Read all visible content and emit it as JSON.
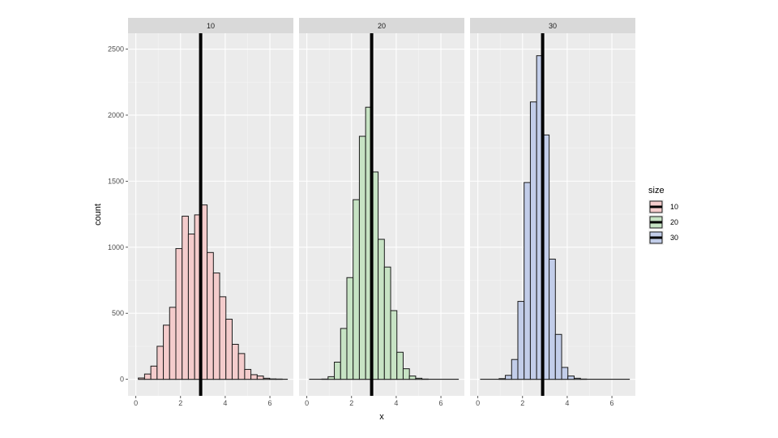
{
  "chart_data": {
    "type": "bar",
    "xlabel": "x",
    "ylabel": "count",
    "xlim": [
      -0.35,
      7.05
    ],
    "ylim": [
      -125,
      2620
    ],
    "x_ticks": [
      0,
      2,
      4,
      6
    ],
    "y_ticks": [
      0,
      500,
      1000,
      1500,
      2000,
      2500
    ],
    "bin_width": 0.28,
    "vline_x": 2.9,
    "legend": {
      "title": "size",
      "placement": "right"
    },
    "panels": [
      {
        "label": "10",
        "series_name": "10",
        "fill": "#f4cccc",
        "bin_centers": [
          0.25,
          0.53,
          0.81,
          1.09,
          1.37,
          1.65,
          1.93,
          2.21,
          2.49,
          2.77,
          3.05,
          3.33,
          3.61,
          3.89,
          4.17,
          4.45,
          4.73,
          5.01,
          5.29,
          5.57,
          5.85,
          6.13,
          6.41
        ],
        "counts": [
          10,
          40,
          100,
          250,
          410,
          545,
          990,
          1235,
          1100,
          1245,
          1320,
          960,
          805,
          625,
          455,
          265,
          195,
          75,
          35,
          25,
          8,
          3,
          2
        ]
      },
      {
        "label": "20",
        "series_name": "20",
        "fill": "#c7e3c4",
        "bin_centers": [
          0.81,
          1.09,
          1.37,
          1.65,
          1.93,
          2.21,
          2.49,
          2.77,
          3.05,
          3.33,
          3.61,
          3.89,
          4.17,
          4.45,
          4.73,
          5.01,
          5.29
        ],
        "counts": [
          2,
          20,
          130,
          385,
          770,
          1360,
          1840,
          2060,
          1570,
          1060,
          850,
          520,
          205,
          80,
          25,
          8,
          2
        ]
      },
      {
        "label": "30",
        "series_name": "30",
        "fill": "#c2cde9",
        "bin_centers": [
          1.09,
          1.37,
          1.65,
          1.93,
          2.21,
          2.49,
          2.77,
          3.05,
          3.33,
          3.61,
          3.89,
          4.17,
          4.45,
          4.73
        ],
        "counts": [
          5,
          30,
          150,
          590,
          1490,
          2100,
          2450,
          1850,
          910,
          340,
          90,
          25,
          8,
          2
        ]
      }
    ]
  }
}
